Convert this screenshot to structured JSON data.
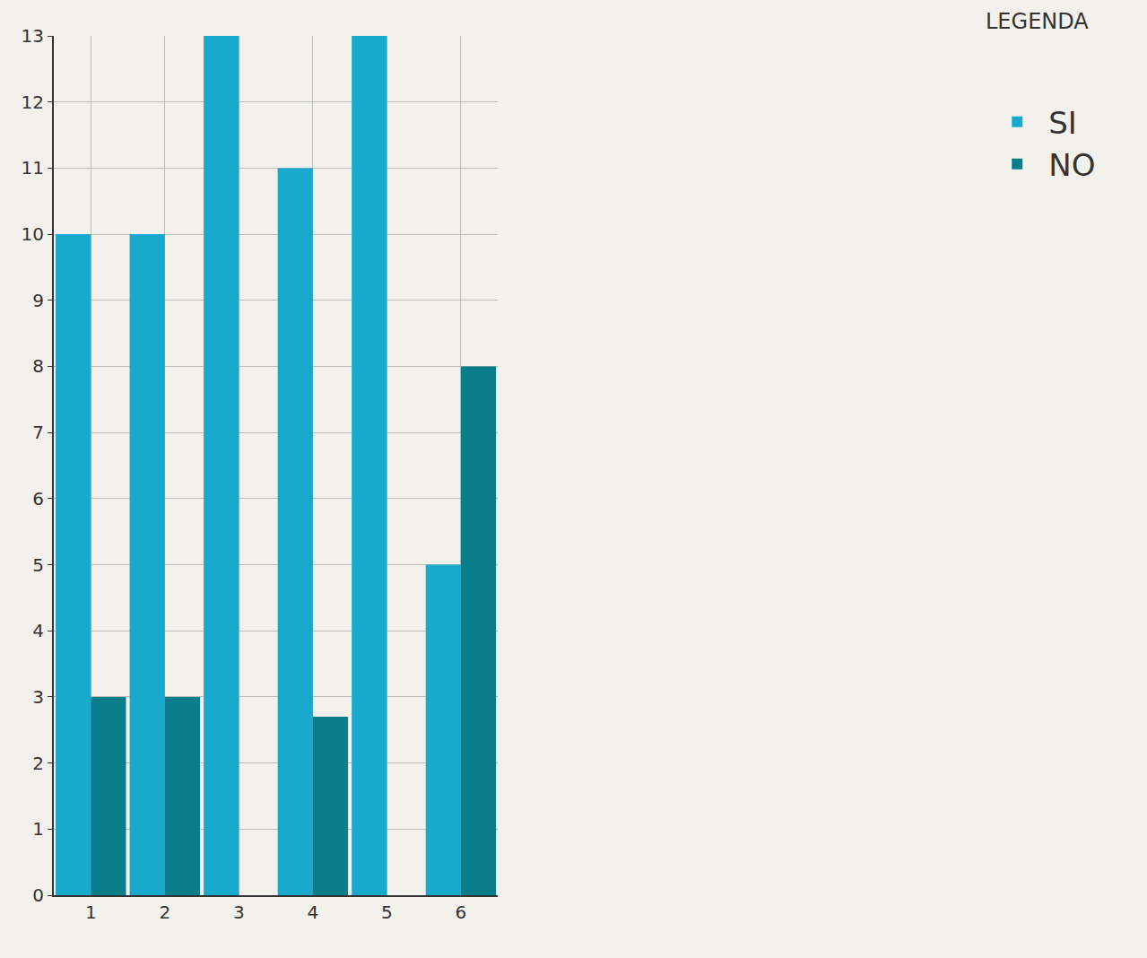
{
  "chart_data": {
    "type": "bar",
    "categories": [
      "1",
      "2",
      "3",
      "4",
      "5",
      "6"
    ],
    "series": [
      {
        "name": "SI",
        "color": "#19a9cc",
        "values": [
          10,
          10,
          13,
          11,
          13,
          5
        ]
      },
      {
        "name": "NO",
        "color": "#0a7d8a",
        "values": [
          3,
          3,
          0,
          2.7,
          0,
          8
        ]
      }
    ],
    "ylim": [
      0,
      13
    ],
    "yticks": [
      0,
      1,
      2,
      3,
      4,
      5,
      6,
      7,
      8,
      9,
      10,
      11,
      12,
      13
    ],
    "annotations": [
      "LEGENDA"
    ],
    "grid": true,
    "legend": "top right"
  }
}
